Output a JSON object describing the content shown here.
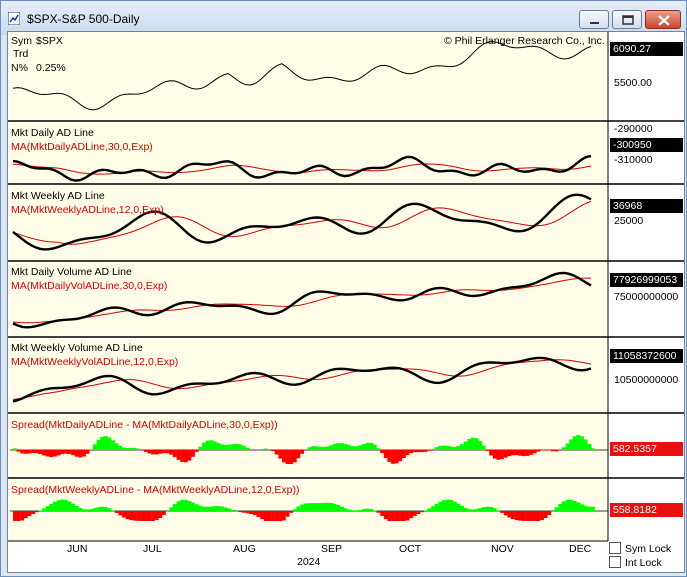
{
  "window": {
    "title": "$SPX-S&P 500-Daily"
  },
  "header": {
    "sym_label": "Sym",
    "sym_value": "$SPX",
    "trd_label": "Trd",
    "n_label": "N%",
    "n_value": "0.25%",
    "copyright": "© Phil Erlanger Research Co., Inc."
  },
  "panels": [
    {
      "id": "price",
      "label": "",
      "ma_label": "",
      "ticks": [
        "5500.00"
      ],
      "last_value": "6090.27",
      "ma_value": ""
    },
    {
      "id": "daily_ad",
      "label": "Mkt Daily AD Line",
      "ma_label": "MA(MktDailyADLine,30,0,Exp)",
      "ticks": [
        "-290000",
        "-310000"
      ],
      "last_value": "-300950"
    },
    {
      "id": "weekly_ad",
      "label": "Mkt Weekly AD Line",
      "ma_label": "MA(MktWeeklyADLine,12,0,Exp)",
      "ticks": [
        "25000"
      ],
      "last_value": "36968"
    },
    {
      "id": "daily_vol",
      "label": "Mkt Daily Volume AD Line",
      "ma_label": "MA(MktDailyVolADLine,30,0,Exp)",
      "ticks": [
        "75000000000"
      ],
      "last_value": "77926999053"
    },
    {
      "id": "weekly_vol",
      "label": "Mkt Weekly Volume AD Line",
      "ma_label": "MA(MktWeeklyVolADLine,12,0,Exp)",
      "ticks": [
        "10500000000"
      ],
      "last_value": "11058372600"
    },
    {
      "id": "spread_daily",
      "label": "Spread(MktDailyADLine - MA(MktDailyADLine,30,0,Exp))",
      "last_value": "582.5357"
    },
    {
      "id": "spread_weekly",
      "label": "Spread(MktWeeklyADLine - MA(MktWeeklyADLine,12,0,Exp))",
      "last_value": "558.8182"
    }
  ],
  "x_axis": {
    "months": [
      "JUN",
      "JUL",
      "AUG",
      "SEP",
      "OCT",
      "NOV",
      "DEC"
    ],
    "year": "2024"
  },
  "controls": {
    "sym_lock": "Sym Lock",
    "int_lock": "Int Lock"
  },
  "colors": {
    "line": "#000000",
    "ma": "#d40000",
    "positive": "#00ff00",
    "negative": "#ff0000",
    "panel_bg": "#fffde8"
  }
}
